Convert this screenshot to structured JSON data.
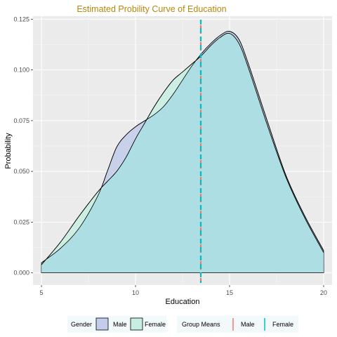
{
  "chart_data": {
    "type": "area",
    "title": "Estimated Probility Curve of Education",
    "xlabel": "Education",
    "ylabel": "Probability",
    "xlim": [
      4.55,
      20.45
    ],
    "ylim": [
      -0.006,
      0.1265
    ],
    "x_ticks": [
      5,
      10,
      15,
      20
    ],
    "y_ticks": [
      0.0,
      0.025,
      0.05,
      0.075,
      0.1,
      0.125
    ],
    "y_tick_labels": [
      "0.000",
      "0.025",
      "0.050",
      "0.075",
      "0.100",
      "0.125"
    ],
    "grid": true,
    "legend_position": "bottom",
    "series": [
      {
        "name": "Male",
        "fill": "#C3CCEA",
        "x": [
          5,
          6,
          7,
          8,
          8.5,
          9,
          9.5,
          10,
          10.5,
          11,
          11.5,
          12,
          12.5,
          13,
          13.5,
          14,
          14.5,
          15,
          15.5,
          16,
          17,
          18,
          19,
          20
        ],
        "values": [
          0.005,
          0.012,
          0.022,
          0.038,
          0.05,
          0.062,
          0.068,
          0.072,
          0.075,
          0.078,
          0.082,
          0.088,
          0.095,
          0.102,
          0.108,
          0.113,
          0.117,
          0.119,
          0.115,
          0.103,
          0.075,
          0.048,
          0.028,
          0.011
        ]
      },
      {
        "name": "Female",
        "fill": "#C8EEE1",
        "x": [
          5,
          6,
          7,
          8,
          8.5,
          9,
          9.5,
          10,
          10.5,
          11,
          11.5,
          12,
          12.5,
          13,
          13.5,
          14,
          14.5,
          15,
          15.5,
          16,
          17,
          18,
          19,
          20
        ],
        "values": [
          0.004,
          0.015,
          0.028,
          0.04,
          0.045,
          0.05,
          0.057,
          0.066,
          0.074,
          0.082,
          0.089,
          0.095,
          0.099,
          0.103,
          0.107,
          0.112,
          0.116,
          0.118,
          0.113,
          0.101,
          0.073,
          0.047,
          0.027,
          0.01
        ]
      }
    ],
    "group_means": [
      {
        "name": "Male",
        "x": 13.47,
        "color": "#F8766D"
      },
      {
        "name": "Female",
        "x": 13.47,
        "color": "#00BFC4"
      }
    ],
    "legend": {
      "gender_title": "Gender",
      "gender_items": [
        "Male",
        "Female"
      ],
      "means_title": "Group Means",
      "means_items": [
        "Male",
        "Female"
      ]
    }
  }
}
